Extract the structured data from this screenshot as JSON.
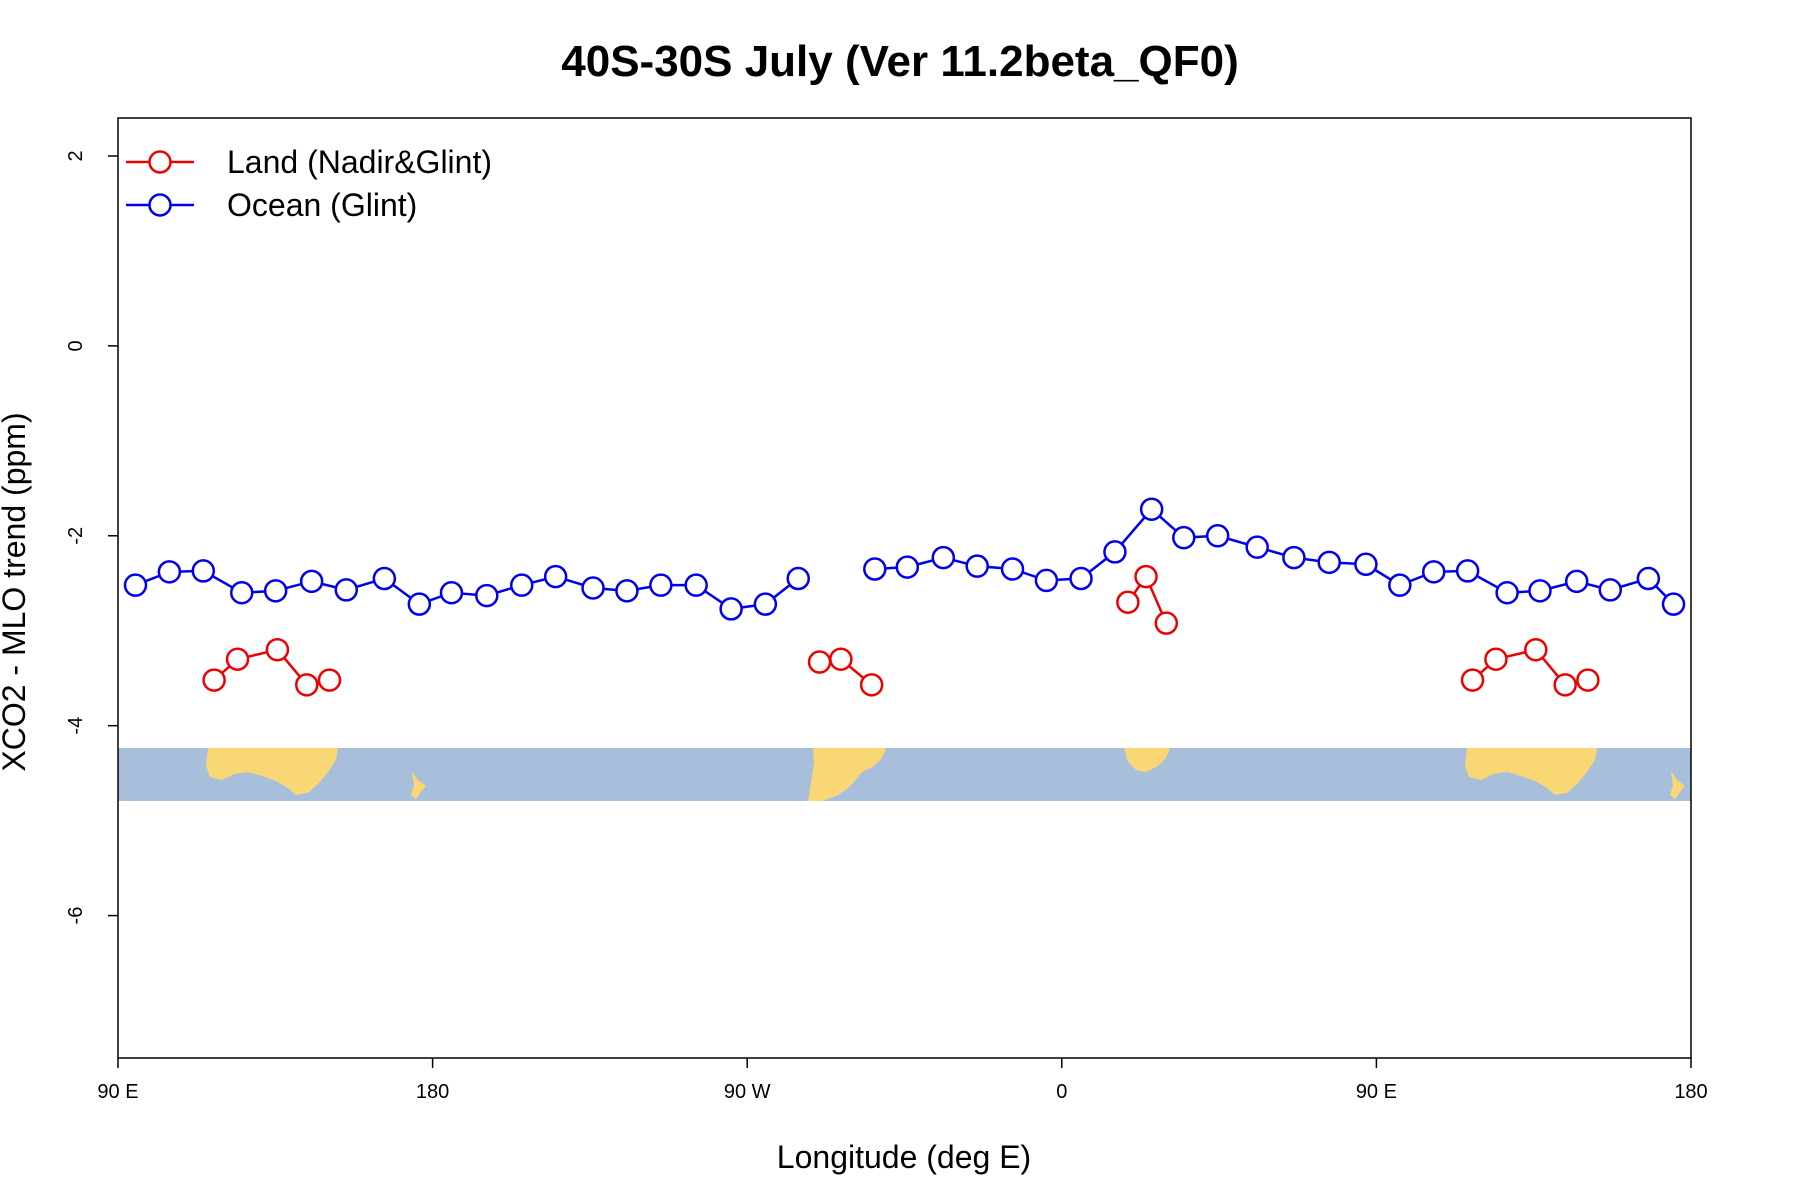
{
  "chart_data": {
    "type": "line",
    "title": "40S-30S July (Ver 11.2beta_QF0)",
    "xlabel": "Longitude (deg E)",
    "ylabel": "XCO2 - MLO trend (ppm)",
    "xlim": [
      90,
      540
    ],
    "ylim": [
      -7.5,
      2.4
    ],
    "x_ticks": [
      {
        "value": 90,
        "label": "90 E"
      },
      {
        "value": 180,
        "label": "180"
      },
      {
        "value": 270,
        "label": "90 W"
      },
      {
        "value": 360,
        "label": "0"
      },
      {
        "value": 450,
        "label": "90 E"
      },
      {
        "value": 540,
        "label": "180"
      }
    ],
    "y_ticks": [
      {
        "value": 2,
        "label": "2"
      },
      {
        "value": 0,
        "label": "0"
      },
      {
        "value": -2,
        "label": "-2"
      },
      {
        "value": -4,
        "label": "-4"
      },
      {
        "value": -6,
        "label": "-6"
      }
    ],
    "legend_position": "top-left",
    "series": [
      {
        "name": "Land (Nadir&Glint)",
        "color": "#ee0000",
        "segments": [
          [
            [
              117.5,
              -3.52
            ],
            [
              124.2,
              -3.3
            ],
            [
              135.6,
              -3.2
            ],
            [
              144,
              -3.57
            ],
            [
              150.5,
              -3.52
            ]
          ],
          [
            [
              290.7,
              -3.33
            ],
            [
              296.8,
              -3.3
            ],
            [
              305.6,
              -3.57
            ]
          ],
          [
            [
              378.9,
              -2.7
            ],
            [
              384.1,
              -2.43
            ],
            [
              389.9,
              -2.92
            ]
          ],
          [
            [
              477.5,
              -3.52
            ],
            [
              484.2,
              -3.3
            ],
            [
              495.6,
              -3.2
            ],
            [
              504,
              -3.57
            ],
            [
              510.5,
              -3.52
            ]
          ]
        ]
      },
      {
        "name": "Ocean (Glint)",
        "color": "#0000ee",
        "segments": [
          [
            [
              95,
              -2.52
            ],
            [
              104.7,
              -2.38
            ],
            [
              114.4,
              -2.37
            ],
            [
              125.4,
              -2.6
            ],
            [
              135.1,
              -2.58
            ],
            [
              145.4,
              -2.48
            ],
            [
              155.3,
              -2.57
            ],
            [
              166.2,
              -2.45
            ],
            [
              176.2,
              -2.72
            ],
            [
              185.4,
              -2.6
            ],
            [
              195.5,
              -2.63
            ],
            [
              205.5,
              -2.52
            ],
            [
              215.2,
              -2.43
            ],
            [
              225.9,
              -2.55
            ],
            [
              235.6,
              -2.58
            ],
            [
              245.3,
              -2.52
            ],
            [
              255.4,
              -2.52
            ],
            [
              265.4,
              -2.77
            ],
            [
              275.2,
              -2.72
            ],
            [
              284.6,
              -2.45
            ]
          ],
          [
            [
              306.5,
              -2.35
            ],
            [
              315.8,
              -2.33
            ],
            [
              326.1,
              -2.23
            ],
            [
              335.8,
              -2.32
            ],
            [
              345.9,
              -2.35
            ],
            [
              355.6,
              -2.47
            ],
            [
              365.5,
              -2.45
            ],
            [
              375.2,
              -2.17
            ],
            [
              385.7,
              -1.72
            ],
            [
              394.9,
              -2.02
            ],
            [
              404.6,
              -2.0
            ],
            [
              415.9,
              -2.12
            ],
            [
              426.4,
              -2.23
            ],
            [
              436.5,
              -2.28
            ],
            [
              447,
              -2.3
            ],
            [
              456.7,
              -2.52
            ],
            [
              466.4,
              -2.38
            ],
            [
              476.1,
              -2.37
            ],
            [
              487.4,
              -2.6
            ],
            [
              496.8,
              -2.58
            ],
            [
              507.3,
              -2.48
            ],
            [
              516.9,
              -2.57
            ],
            [
              527.8,
              -2.45
            ],
            [
              535,
              -2.72
            ]
          ]
        ]
      }
    ]
  }
}
